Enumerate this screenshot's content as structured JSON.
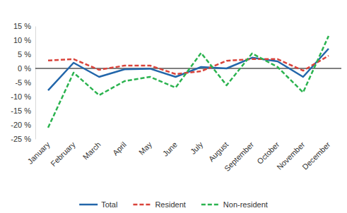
{
  "chart_data": {
    "type": "line",
    "categories": [
      "January",
      "February",
      "March",
      "April",
      "May",
      "June",
      "July",
      "August",
      "September",
      "October",
      "November",
      "December"
    ],
    "series": [
      {
        "name": "Total",
        "color": "#2266aa",
        "line_style": "solid",
        "values": [
          -7.8,
          2,
          -3,
          -0.3,
          -0.1,
          -3,
          0.5,
          0,
          3.8,
          2.5,
          -3,
          7
        ]
      },
      {
        "name": "Resident",
        "color": "#d9433b",
        "line_style": "dashed",
        "values": [
          2.8,
          3.3,
          -0.5,
          1,
          1,
          -2,
          -1,
          2.7,
          3.3,
          3.3,
          -0.8,
          4.5
        ]
      },
      {
        "name": "Non-resident",
        "color": "#2bb34f",
        "line_style": "dashed",
        "values": [
          -21,
          -1.5,
          -9.5,
          -4.5,
          -3,
          -6.8,
          5.5,
          -6,
          5.3,
          0.5,
          -8.5,
          11.5
        ]
      }
    ],
    "ylim": [
      -25,
      15
    ],
    "yticks": [
      {
        "value": -25,
        "label": "-25 %"
      },
      {
        "value": -20,
        "label": "-20 %"
      },
      {
        "value": -15,
        "label": "-15 %"
      },
      {
        "value": -10,
        "label": "-10 %"
      },
      {
        "value": -5,
        "label": "-5 %"
      },
      {
        "value": 0,
        "label": "0 %"
      },
      {
        "value": 5,
        "label": "5 %"
      },
      {
        "value": 10,
        "label": "10 %"
      },
      {
        "value": 15,
        "label": "15 %"
      }
    ],
    "grid": false,
    "legend": "bottom"
  }
}
